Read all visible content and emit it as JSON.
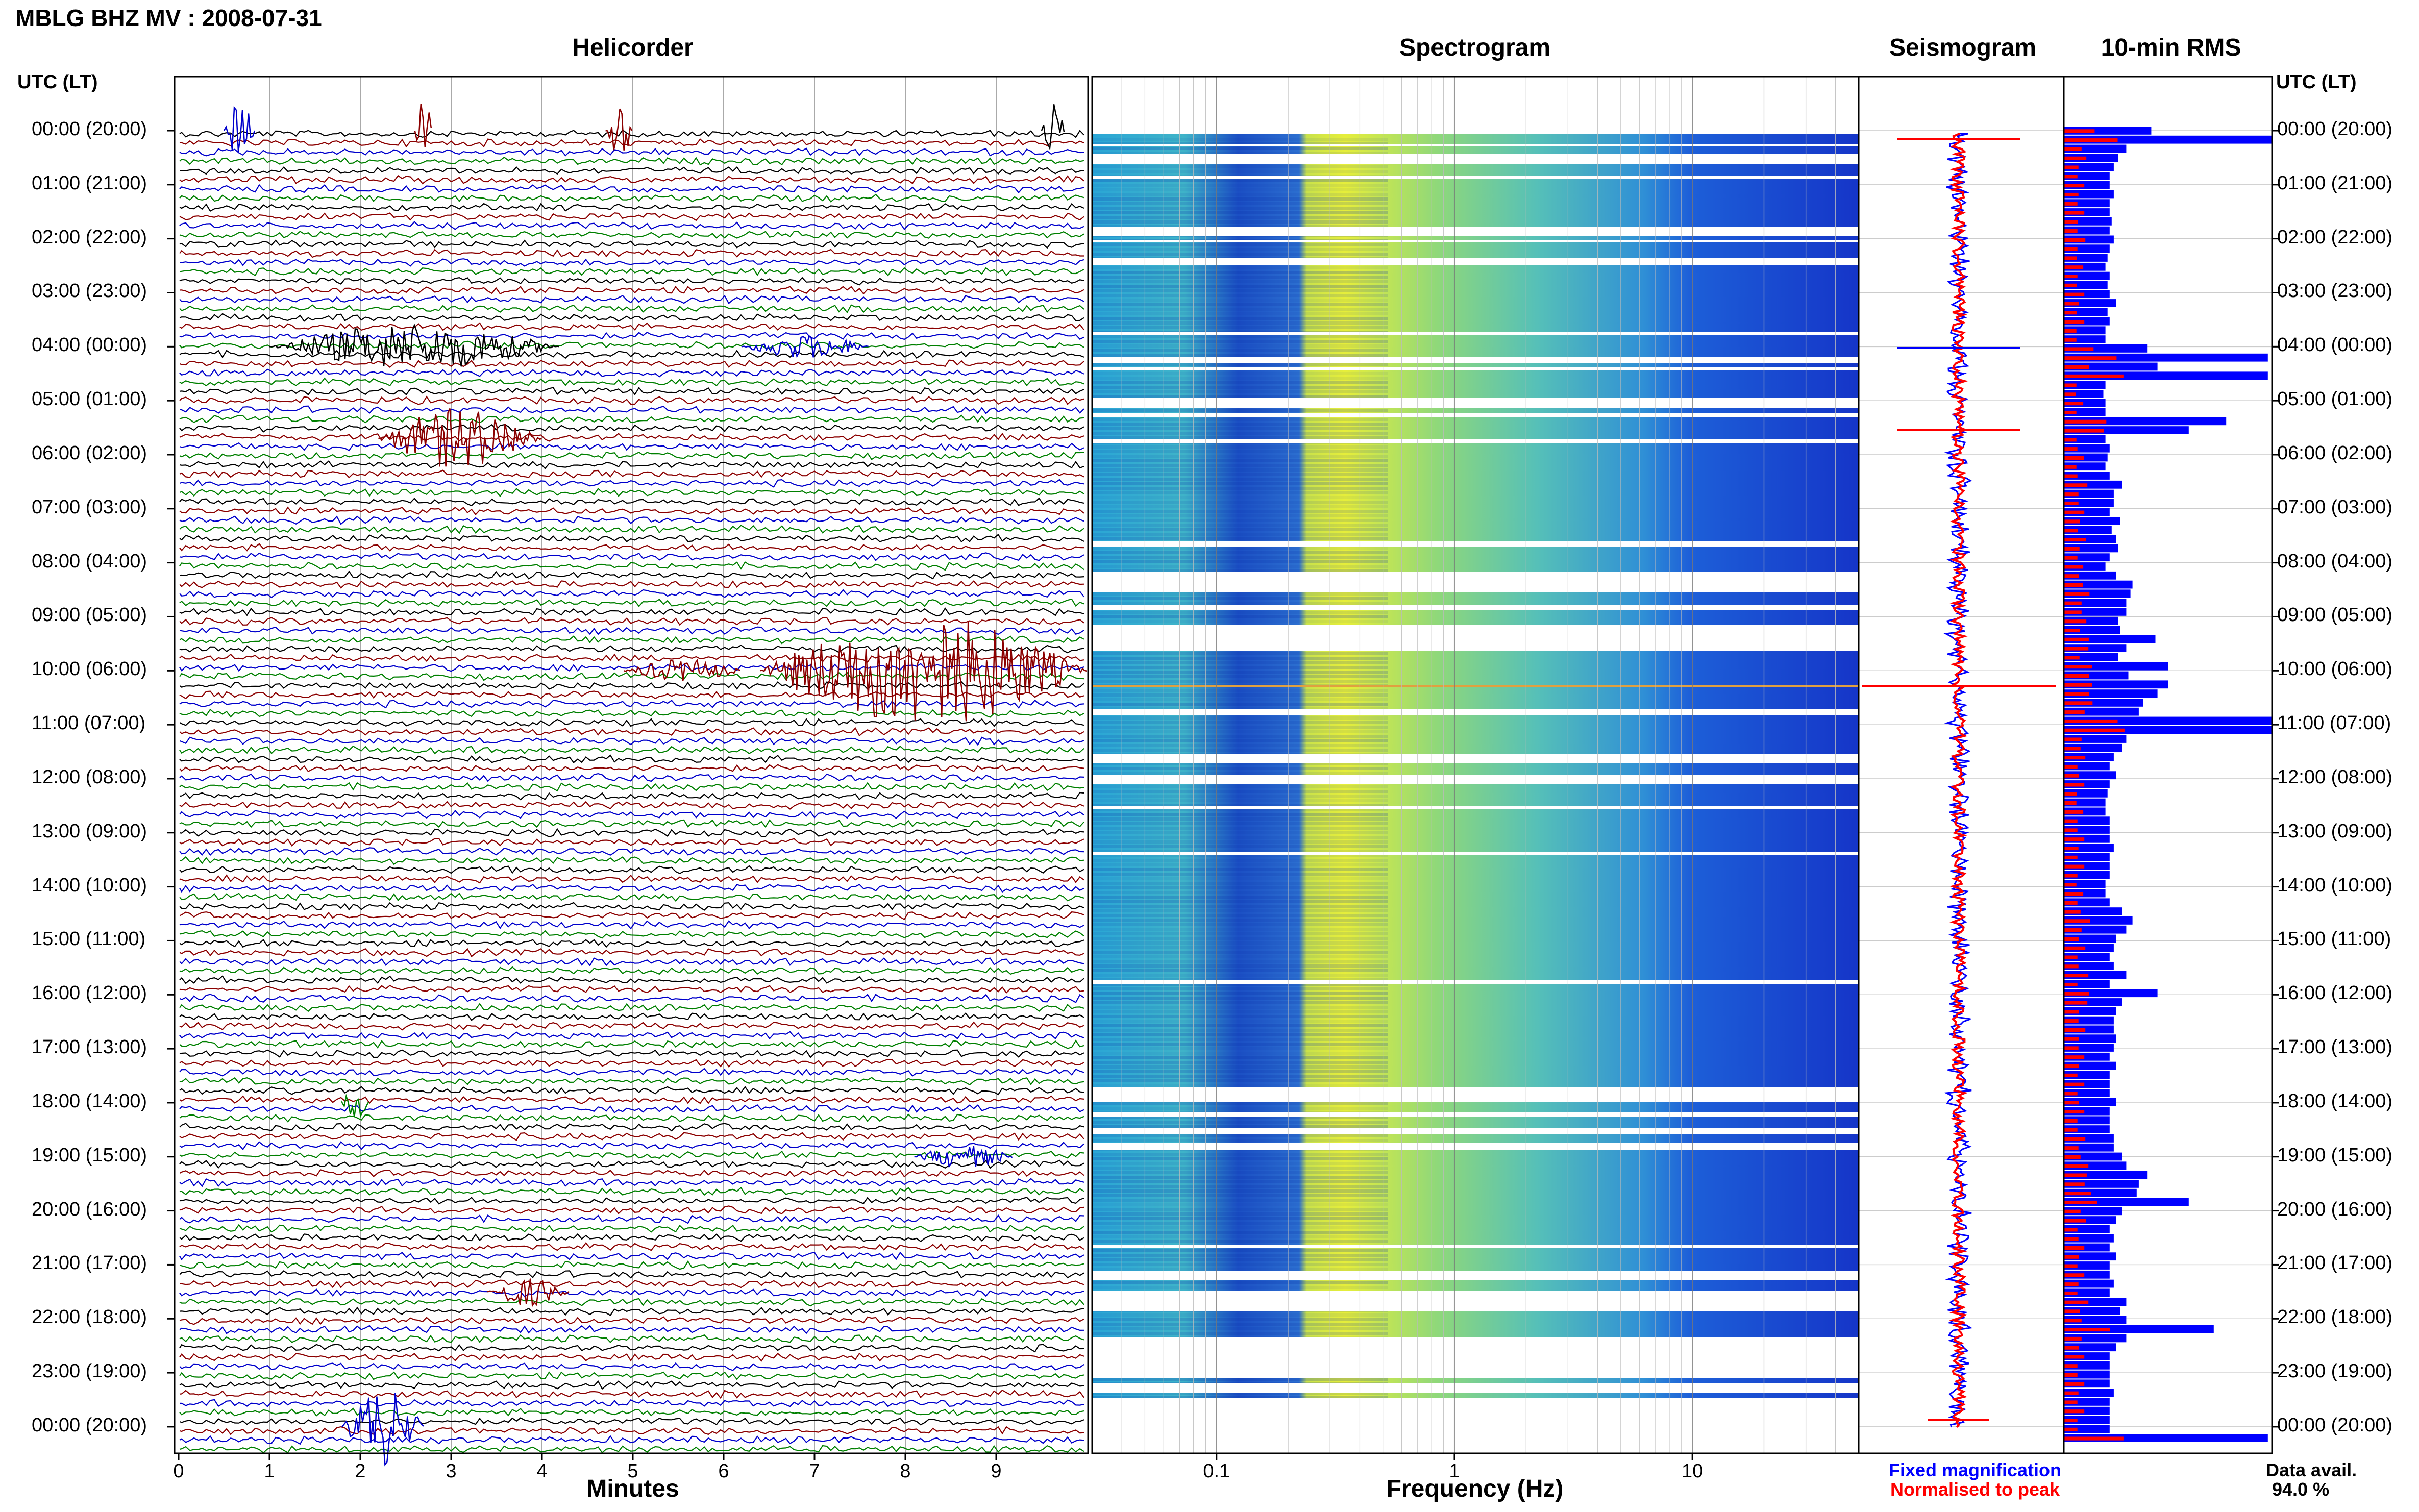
{
  "title": "MBLG BHZ MV : 2008-07-31",
  "panels": {
    "helicorder": "Helicorder",
    "spectrogram": "Spectrogram",
    "seismogram": "Seismogram",
    "rms": "10-min RMS"
  },
  "time_axis_header": "UTC (LT)",
  "x_axes": {
    "helicorder": {
      "label": "Minutes",
      "ticks": [
        "0",
        "1",
        "2",
        "3",
        "4",
        "5",
        "6",
        "7",
        "8",
        "9"
      ]
    },
    "spectrogram": {
      "label": "Frequency (Hz)",
      "ticks": [
        "0.1",
        "1",
        "10"
      ]
    }
  },
  "legend": {
    "fixed": "Fixed magnification",
    "normalised": "Normalised to peak",
    "data_avail_label": "Data avail.",
    "data_avail_value": "94.0 %"
  },
  "colors": {
    "trace_cycle": [
      "#000000",
      "#8b0000",
      "#0000cc",
      "#008000"
    ],
    "fixed": "#0000ff",
    "normalised": "#ff0000"
  },
  "chart_data": {
    "type": "helicorder",
    "station": "MBLG BHZ MV",
    "date": "2008-07-31",
    "hour_rows": [
      "00:00 (20:00)",
      "01:00 (21:00)",
      "02:00 (22:00)",
      "03:00 (23:00)",
      "04:00 (00:00)",
      "05:00 (01:00)",
      "06:00 (02:00)",
      "07:00 (03:00)",
      "08:00 (04:00)",
      "09:00 (05:00)",
      "10:00 (06:00)",
      "11:00 (07:00)",
      "12:00 (08:00)",
      "13:00 (09:00)",
      "14:00 (10:00)",
      "15:00 (11:00)",
      "16:00 (12:00)",
      "17:00 (13:00)",
      "18:00 (14:00)",
      "19:00 (15:00)",
      "20:00 (16:00)",
      "21:00 (17:00)",
      "22:00 (18:00)",
      "23:00 (19:00)",
      "00:00 (20:00)"
    ],
    "helicorder_xlim_minutes": [
      0,
      10
    ],
    "spectrogram_xlim_hz": [
      0.03,
      50
    ],
    "spectrogram_xscale": "log",
    "data_availability_percent": 94.0,
    "rms_fixed_relative": [
      0.42,
      1.0,
      0.3,
      0.26,
      0.24,
      0.22,
      0.22,
      0.24,
      0.22,
      0.22,
      0.23,
      0.22,
      0.24,
      0.22,
      0.21,
      0.2,
      0.22,
      0.21,
      0.22,
      0.25,
      0.21,
      0.22,
      0.2,
      0.2,
      0.4,
      0.98,
      0.45,
      0.98,
      0.2,
      0.19,
      0.2,
      0.2,
      0.78,
      0.6,
      0.2,
      0.22,
      0.21,
      0.2,
      0.22,
      0.28,
      0.24,
      0.24,
      0.22,
      0.27,
      0.23,
      0.25,
      0.26,
      0.22,
      0.2,
      0.25,
      0.33,
      0.32,
      0.3,
      0.3,
      0.26,
      0.27,
      0.44,
      0.3,
      0.26,
      0.5,
      0.31,
      0.5,
      0.45,
      0.38,
      0.36,
      1.0,
      1.0,
      0.3,
      0.28,
      0.24,
      0.22,
      0.25,
      0.22,
      0.21,
      0.2,
      0.2,
      0.22,
      0.22,
      0.22,
      0.24,
      0.22,
      0.22,
      0.22,
      0.2,
      0.2,
      0.22,
      0.28,
      0.33,
      0.3,
      0.25,
      0.24,
      0.22,
      0.24,
      0.3,
      0.22,
      0.45,
      0.28,
      0.25,
      0.24,
      0.24,
      0.25,
      0.24,
      0.22,
      0.25,
      0.22,
      0.22,
      0.22,
      0.25,
      0.22,
      0.22,
      0.22,
      0.24,
      0.24,
      0.28,
      0.3,
      0.4,
      0.36,
      0.35,
      0.6,
      0.28,
      0.25,
      0.22,
      0.24,
      0.22,
      0.25,
      0.22,
      0.22,
      0.24,
      0.22,
      0.3,
      0.27,
      0.3,
      0.72,
      0.3,
      0.25,
      0.22,
      0.22,
      0.22,
      0.22,
      0.24,
      0.22,
      0.22,
      0.22,
      0.22,
      0.98
    ]
  }
}
